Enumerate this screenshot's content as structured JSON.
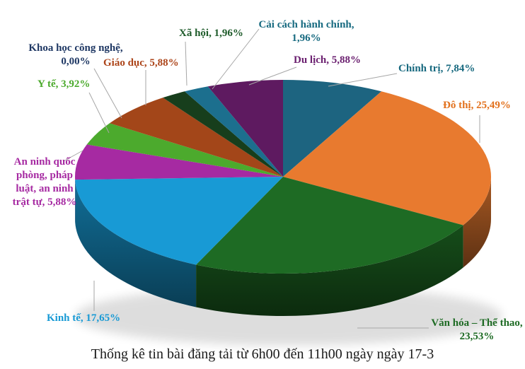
{
  "chart_data": {
    "type": "pie",
    "effect": "3d",
    "direction": "clockwise",
    "start_angle_deg": 0,
    "background": "#FFFFFF",
    "leader_line_color": "#A6A6A6",
    "title": "Thống kê tin bài đăng tải từ 6h00 đến 11h00 ngày ngày 17-3",
    "title_color": "#1A1A1A",
    "value_format": "percent, comma decimal",
    "slices": [
      {
        "id": "chinh-tri",
        "name": "Chính trị",
        "percent": 7.84,
        "percent_display": "7,84%",
        "label_lines": [
          "Chính trị, 7,84%"
        ],
        "color": "#1D6480",
        "label_color": "#17697F"
      },
      {
        "id": "do-thi",
        "name": "Đô thị",
        "percent": 25.49,
        "percent_display": "25,49%",
        "label_lines": [
          "Đô thị, 25,49%"
        ],
        "color": "#E87A2F",
        "label_color": "#E2711D"
      },
      {
        "id": "van-hoa",
        "name": "Văn hóa – Thể thao",
        "percent": 23.53,
        "percent_display": "23,53%",
        "label_lines": [
          "Văn hóa – Thể thao,",
          "23,53%"
        ],
        "color": "#1E6B24",
        "label_color": "#1E6B24"
      },
      {
        "id": "kinh-te",
        "name": "Kinh tế",
        "percent": 17.65,
        "percent_display": "17,65%",
        "label_lines": [
          "Kinh tế, 17,65%"
        ],
        "color": "#189AD5",
        "label_color": "#189AD5"
      },
      {
        "id": "an-ninh",
        "name": "An ninh quốc phòng, pháp luật, an ninh trật tự",
        "percent": 5.88,
        "percent_display": "5,88%",
        "label_lines": [
          "An ninh quốc",
          "phòng, pháp",
          "luật, an ninh",
          "trật tự, 5,88%"
        ],
        "color": "#A62AA2",
        "label_color": "#A62AA2"
      },
      {
        "id": "y-te",
        "name": "Y tế",
        "percent": 3.92,
        "percent_display": "3,92%",
        "label_lines": [
          "Y tế, 3,92%"
        ],
        "color": "#4CAA2D",
        "label_color": "#4CAA2D"
      },
      {
        "id": "khcn",
        "name": "Khoa học công nghệ",
        "percent": 0.0,
        "percent_display": "0,00%",
        "label_lines": [
          "Khoa học công nghệ,",
          "0,00%"
        ],
        "color": "#2A4A7A",
        "label_color": "#1F3864"
      },
      {
        "id": "giao-duc",
        "name": "Giáo dục",
        "percent": 5.88,
        "percent_display": "5,88%",
        "label_lines": [
          "Giáo dục, 5,88%"
        ],
        "color": "#A34619",
        "label_color": "#AC4419"
      },
      {
        "id": "xa-hoi",
        "name": "Xã hội",
        "percent": 1.96,
        "percent_display": "1,96%",
        "label_lines": [
          "Xã hội, 1,96%"
        ],
        "color": "#173E1C",
        "label_color": "#1E5B2A"
      },
      {
        "id": "cai-cach",
        "name": "Cải cách hành chính",
        "percent": 1.96,
        "percent_display": "1,96%",
        "label_lines": [
          "Cải cách hành chính,",
          "1,96%"
        ],
        "color": "#1C6F8E",
        "label_color": "#176A80"
      },
      {
        "id": "du-lich",
        "name": "Du lịch",
        "percent": 5.88,
        "percent_display": "5,88%",
        "label_lines": [
          "Du lịch, 5,88%"
        ],
        "color": "#5E1A60",
        "label_color": "#6B2070"
      }
    ]
  }
}
